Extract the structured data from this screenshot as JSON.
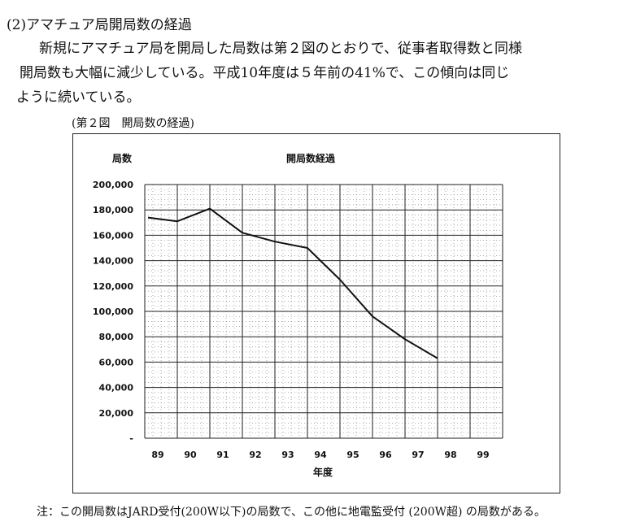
{
  "section": {
    "heading": "(2)アマチュア局開局数の経過",
    "paragraph_lines": [
      "新規にアマチュア局を開局した局数は第２図のとおりで、従事者取得数と同様",
      "開局数も大幅に減少している。平成10年度は５年前の41%で、この傾向は同じ",
      "ように続いている。"
    ]
  },
  "figure": {
    "caption": "(第２図　開局数の経過)"
  },
  "chart_data": {
    "type": "line",
    "title": "開局数経過",
    "ylabel": "局数",
    "xlabel": "年度",
    "categories": [
      "89",
      "90",
      "91",
      "92",
      "93",
      "94",
      "95",
      "96",
      "97",
      "98",
      "99"
    ],
    "y_tick_labels": [
      "200,000",
      "180,000",
      "160,000",
      "140,000",
      "120,000",
      "100,000",
      "80,000",
      "60,000",
      "40,000",
      "20,000",
      "-"
    ],
    "ylim": [
      0,
      200000
    ],
    "grid": true,
    "legend": "none",
    "series": [
      {
        "values": [
          174000,
          171000,
          181000,
          162000,
          155000,
          150000,
          125000,
          96000,
          78000,
          63000,
          null
        ]
      }
    ]
  },
  "footnote": "注：この開局数はJARD受付(200W以下)の局数で、この他に地電監受付 (200W超) の局数がある。"
}
